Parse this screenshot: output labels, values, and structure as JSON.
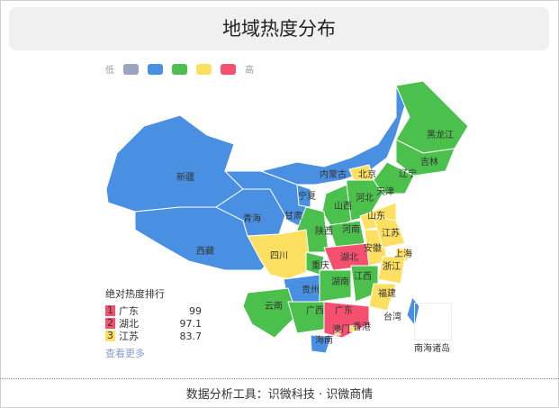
{
  "title": "地域热度分布",
  "legend": {
    "low": "低",
    "high": "高",
    "colors": [
      "#9aa3bf",
      "#4a90e2",
      "#4cc04c",
      "#fddf62",
      "#f5506f"
    ]
  },
  "regions": [
    {
      "name": "新疆",
      "color": "#4a90e2"
    },
    {
      "name": "西藏",
      "color": "#4a90e2"
    },
    {
      "name": "青海",
      "color": "#4a90e2"
    },
    {
      "name": "甘肃",
      "color": "#4a90e2"
    },
    {
      "name": "内蒙古",
      "color": "#4a90e2"
    },
    {
      "name": "黑龙江",
      "color": "#4cc04c"
    },
    {
      "name": "吉林",
      "color": "#4cc04c"
    },
    {
      "name": "辽宁",
      "color": "#4cc04c"
    },
    {
      "name": "宁夏",
      "color": "#4a90e2"
    },
    {
      "name": "北京",
      "color": "#fddf62"
    },
    {
      "name": "天津",
      "color": "#fddf62"
    },
    {
      "name": "河北",
      "color": "#4cc04c"
    },
    {
      "name": "山西",
      "color": "#4cc04c"
    },
    {
      "name": "山东",
      "color": "#fddf62"
    },
    {
      "name": "陕西",
      "color": "#4cc04c"
    },
    {
      "name": "河南",
      "color": "#4cc04c"
    },
    {
      "name": "四川",
      "color": "#fddf62"
    },
    {
      "name": "重庆",
      "color": "#4cc04c"
    },
    {
      "name": "湖北",
      "color": "#f5506f"
    },
    {
      "name": "安徽",
      "color": "#fddf62"
    },
    {
      "name": "江苏",
      "color": "#fddf62"
    },
    {
      "name": "上海",
      "color": "#fddf62"
    },
    {
      "name": "浙江",
      "color": "#fddf62"
    },
    {
      "name": "湖南",
      "color": "#4cc04c"
    },
    {
      "name": "江西",
      "color": "#4cc04c"
    },
    {
      "name": "福建",
      "color": "#fddf62"
    },
    {
      "name": "贵州",
      "color": "#4a90e2"
    },
    {
      "name": "云南",
      "color": "#4cc04c"
    },
    {
      "name": "广西",
      "color": "#4cc04c"
    },
    {
      "name": "广东",
      "color": "#f5506f"
    },
    {
      "name": "海南",
      "color": "#4a90e2"
    },
    {
      "name": "台湾",
      "color": "#4a90e2"
    },
    {
      "name": "香港",
      "color": "#fddf62"
    },
    {
      "name": "澳门",
      "color": "#fddf62"
    }
  ],
  "south_sea": "南海诸岛",
  "ranking": {
    "title": "绝对热度排行",
    "items": [
      {
        "rank": "1",
        "name": "广东",
        "value": "99",
        "color": "#f5506f"
      },
      {
        "rank": "2",
        "name": "湖北",
        "value": "97.1",
        "color": "#f5506f"
      },
      {
        "rank": "3",
        "name": "江苏",
        "value": "83.7",
        "color": "#fddf62"
      }
    ],
    "more": "查看更多"
  },
  "footer": "数据分析工具：识微科技 · 识微商情"
}
